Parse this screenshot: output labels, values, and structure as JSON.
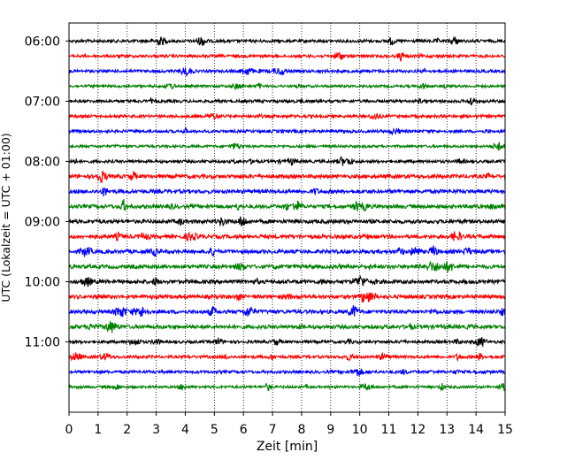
{
  "chart_data": {
    "type": "line",
    "title": "",
    "xlabel": "Zeit  [min]",
    "ylabel": "UTC (Lokalzeit = UTC + 01:00)",
    "xlim": [
      0,
      15
    ],
    "xticks": [
      0,
      1,
      2,
      3,
      4,
      5,
      6,
      7,
      8,
      9,
      10,
      11,
      12,
      13,
      14,
      15
    ],
    "xtick_labels": [
      "0",
      "1",
      "2",
      "3",
      "4",
      "5",
      "6",
      "7",
      "8",
      "9",
      "10",
      "11",
      "12",
      "13",
      "14",
      "15"
    ],
    "ytick_labels": [
      "06:00",
      "07:00",
      "08:00",
      "09:00",
      "10:00",
      "11:00"
    ],
    "ylim_hours": [
      5.7,
      12.17
    ],
    "ytick_hours": [
      6,
      7,
      8,
      9,
      10,
      11
    ],
    "grid": "vertical dotted lines at each minute",
    "trace_interval_minutes": 15,
    "trace_colors": [
      "#000000",
      "#ff0000",
      "#0000ff",
      "#008000"
    ],
    "traces": [
      {
        "start": "06:00",
        "color": "#000000"
      },
      {
        "start": "06:15",
        "color": "#ff0000"
      },
      {
        "start": "06:30",
        "color": "#0000ff"
      },
      {
        "start": "06:45",
        "color": "#008000"
      },
      {
        "start": "07:00",
        "color": "#000000"
      },
      {
        "start": "07:15",
        "color": "#ff0000"
      },
      {
        "start": "07:30",
        "color": "#0000ff"
      },
      {
        "start": "07:45",
        "color": "#008000"
      },
      {
        "start": "08:00",
        "color": "#000000"
      },
      {
        "start": "08:15",
        "color": "#ff0000"
      },
      {
        "start": "08:30",
        "color": "#0000ff"
      },
      {
        "start": "08:45",
        "color": "#008000"
      },
      {
        "start": "09:00",
        "color": "#000000"
      },
      {
        "start": "09:15",
        "color": "#ff0000"
      },
      {
        "start": "09:30",
        "color": "#0000ff"
      },
      {
        "start": "09:45",
        "color": "#008000"
      },
      {
        "start": "10:00",
        "color": "#000000"
      },
      {
        "start": "10:15",
        "color": "#ff0000"
      },
      {
        "start": "10:30",
        "color": "#0000ff"
      },
      {
        "start": "10:45",
        "color": "#008000"
      },
      {
        "start": "11:00",
        "color": "#000000"
      },
      {
        "start": "11:15",
        "color": "#ff0000"
      },
      {
        "start": "11:30",
        "color": "#0000ff"
      },
      {
        "start": "11:45",
        "color": "#008000"
      }
    ]
  }
}
